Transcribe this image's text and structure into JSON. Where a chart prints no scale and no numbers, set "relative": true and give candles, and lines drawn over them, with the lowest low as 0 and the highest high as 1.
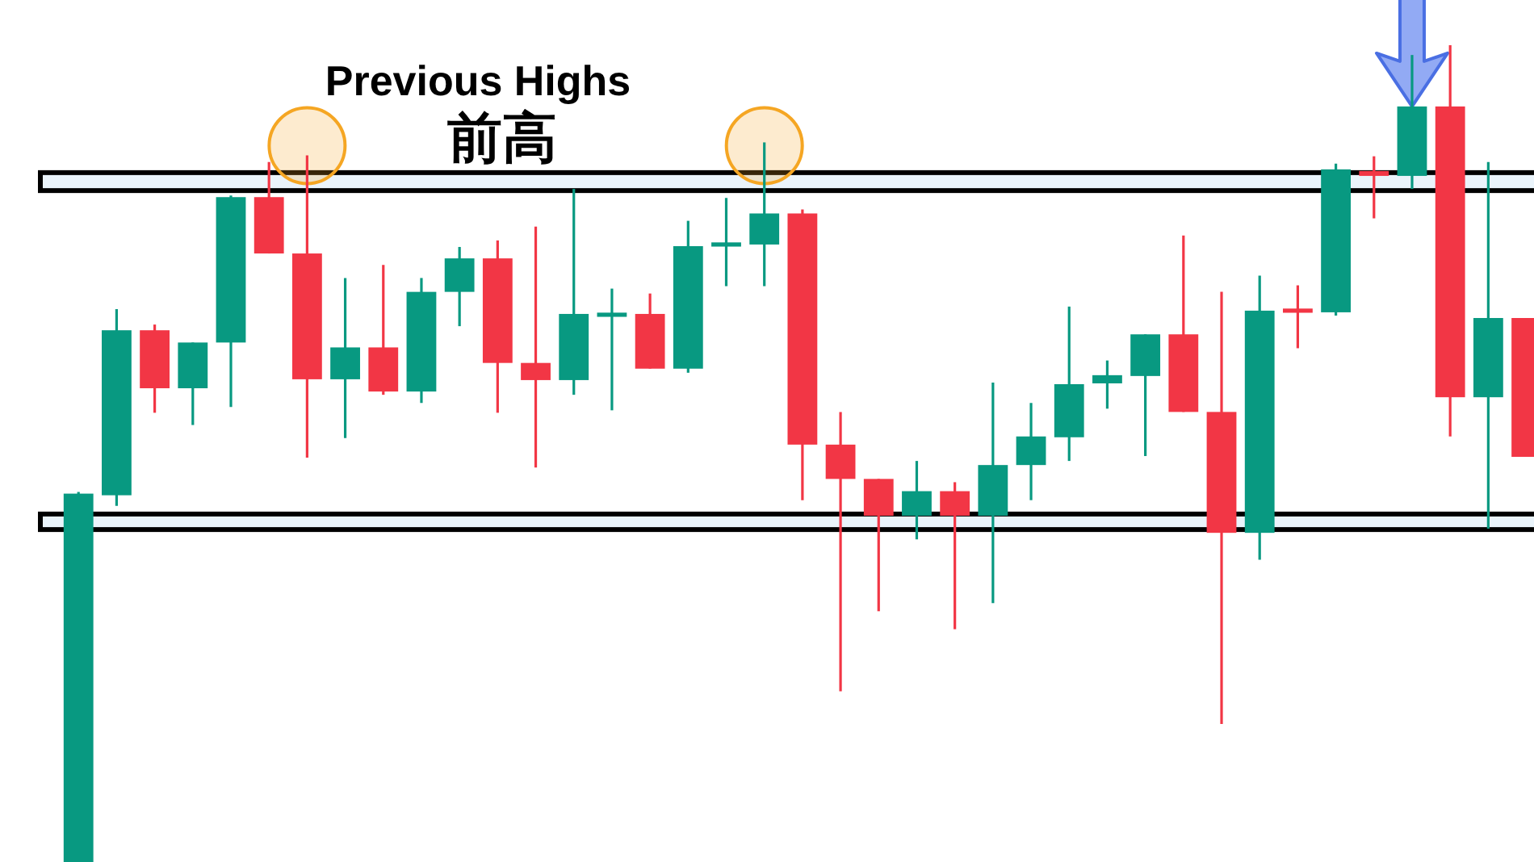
{
  "chart_data": {
    "type": "candlestick",
    "relative": true,
    "categories": [
      null,
      null,
      null,
      null,
      null,
      null,
      null,
      null,
      null,
      null,
      null,
      null,
      null,
      null,
      null,
      null,
      null,
      null,
      null,
      null,
      null,
      null,
      null,
      null,
      null,
      null,
      null,
      null,
      null,
      null,
      null,
      null,
      null,
      null,
      null,
      null,
      null,
      null,
      null
    ],
    "ohlc": [
      [
        0,
        0.453,
        0,
        0.451
      ],
      [
        0.449,
        0.677,
        0.436,
        0.651
      ],
      [
        0.651,
        0.658,
        0.55,
        0.58
      ],
      [
        0.58,
        0.636,
        0.535,
        0.636
      ],
      [
        0.636,
        0.816,
        0.557,
        0.814
      ],
      [
        0.814,
        0.857,
        0.745,
        0.745
      ],
      [
        0.745,
        0.865,
        0.495,
        0.591
      ],
      [
        0.591,
        0.715,
        0.519,
        0.63
      ],
      [
        0.63,
        0.731,
        0.572,
        0.576
      ],
      [
        0.576,
        0.715,
        0.562,
        0.698
      ],
      [
        0.698,
        0.753,
        0.656,
        0.739
      ],
      [
        0.739,
        0.761,
        0.55,
        0.611
      ],
      [
        0.611,
        0.778,
        0.483,
        0.59
      ],
      [
        0.59,
        0.824,
        0.572,
        0.671
      ],
      [
        0.67,
        0.702,
        0.553,
        0.67
      ],
      [
        0.671,
        0.696,
        0.604,
        0.604
      ],
      [
        0.604,
        0.785,
        0.599,
        0.754
      ],
      [
        0.756,
        0.813,
        0.705,
        0.756
      ],
      [
        0.756,
        0.881,
        0.705,
        0.794
      ],
      [
        0.794,
        0.799,
        0.443,
        0.511
      ],
      [
        0.511,
        0.551,
        0.209,
        0.469
      ],
      [
        0.469,
        0.469,
        0.307,
        0.424
      ],
      [
        0.424,
        0.491,
        0.395,
        0.454
      ],
      [
        0.454,
        0.465,
        0.285,
        0.424
      ],
      [
        0.424,
        0.587,
        0.317,
        0.486
      ],
      [
        0.486,
        0.562,
        0.443,
        0.521
      ],
      [
        0.52,
        0.68,
        0.491,
        0.585
      ],
      [
        0.586,
        0.614,
        0.555,
        0.596
      ],
      [
        0.595,
        0.646,
        0.497,
        0.646
      ],
      [
        0.646,
        0.767,
        0.551,
        0.551
      ],
      [
        0.551,
        0.698,
        0.169,
        0.403
      ],
      [
        0.403,
        0.718,
        0.37,
        0.675
      ],
      [
        0.675,
        0.706,
        0.629,
        0.675
      ],
      [
        0.673,
        0.855,
        0.669,
        0.848
      ],
      [
        0.846,
        0.864,
        0.788,
        0.84
      ],
      [
        0.84,
        0.988,
        0.824,
        0.925
      ],
      [
        0.925,
        1,
        0.521,
        0.569
      ],
      [
        0.569,
        0.857,
        0.408,
        0.666
      ],
      [
        0.666,
        0.666,
        0.496,
        0.496
      ]
    ],
    "colors": [
      "#089981",
      "#089981",
      "#f23645",
      "#089981",
      "#089981",
      "#f23645",
      "#f23645",
      "#089981",
      "#f23645",
      "#089981",
      "#089981",
      "#f23645",
      "#f23645",
      "#089981",
      "#089981",
      "#f23645",
      "#089981",
      "#089981",
      "#089981",
      "#f23645",
      "#f23645",
      "#f23645",
      "#089981",
      "#f23645",
      "#089981",
      "#089981",
      "#089981",
      "#089981",
      "#089981",
      "#f23645",
      "#f23645",
      "#089981",
      "#f23645",
      "#089981",
      "#f23645",
      "#089981",
      "#f23645",
      "#089981",
      "#f23645"
    ],
    "series": [
      {
        "type": "scatter",
        "marker": "circle",
        "color": "#f5a623",
        "values": [
          null,
          null,
          null,
          null,
          null,
          null,
          0.877,
          null,
          null,
          null,
          null,
          null,
          null,
          null,
          null,
          null,
          null,
          null,
          0.877,
          null,
          null,
          null,
          null,
          null,
          null,
          null,
          null,
          null,
          null,
          null,
          null,
          null,
          null,
          null,
          null,
          null,
          null,
          null,
          null
        ]
      }
    ],
    "bands": [
      {
        "axis": "y",
        "from": 0.822,
        "to": 0.844,
        "color": "#eaf4fb"
      },
      {
        "axis": "y",
        "from": 0.407,
        "to": 0.426,
        "color": "#eaf4fb"
      }
    ],
    "annotations": [
      "Previous Highs",
      "前高"
    ]
  }
}
